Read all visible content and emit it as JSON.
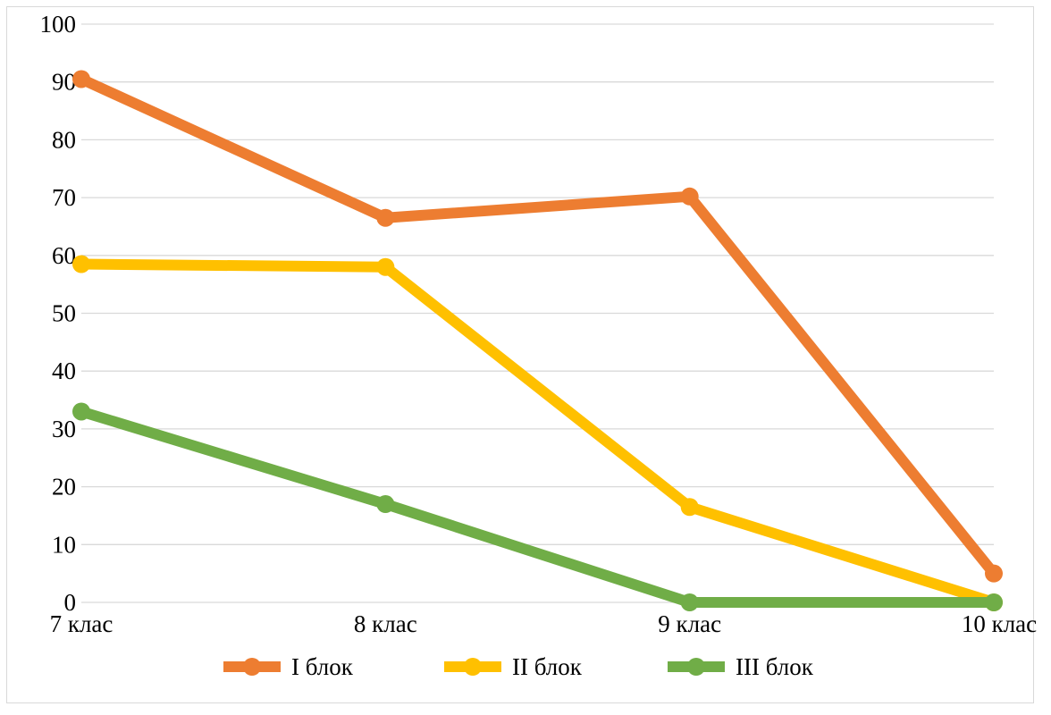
{
  "chart_data": {
    "type": "line",
    "categories": [
      "7 клас",
      "8 клас",
      "9 клас",
      "10 клас"
    ],
    "series": [
      {
        "name": "I блок",
        "values": [
          90.5,
          66.5,
          70.2,
          5.0
        ],
        "color": "#ED7D31"
      },
      {
        "name": "II блок",
        "values": [
          58.5,
          58.0,
          16.5,
          0.0
        ],
        "color": "#FFC000"
      },
      {
        "name": "III блок",
        "values": [
          33.0,
          17.0,
          0.0,
          0.0
        ],
        "color": "#70AD47"
      }
    ],
    "ylim": [
      0,
      100
    ],
    "yticks": [
      0,
      10,
      20,
      30,
      40,
      50,
      60,
      70,
      80,
      90,
      100
    ],
    "grid": true,
    "legend_position": "bottom",
    "markers": true
  }
}
